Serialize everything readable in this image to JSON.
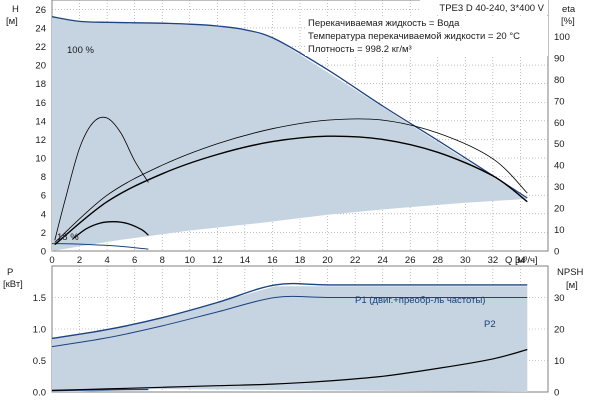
{
  "chart_data": [
    {
      "id": "head_eff",
      "type": "line",
      "title": "TPE3 D 40-240, 3*400 V",
      "info": [
        "Перекачиваемая жидкость = Вода",
        "Температура перекачиваемой жидкости = 20 °C",
        "Плотность = 998.2 кг/м³"
      ],
      "ylabel": "H",
      "yunit": "[м]",
      "y2label": "eta",
      "y2unit": "[%]",
      "xlabel": "Q",
      "xunit": "[м³/ч]",
      "xlim": [
        0,
        36
      ],
      "ylim": [
        0,
        27
      ],
      "y2lim": [
        0,
        117
      ],
      "xticks": [
        "0",
        "2",
        "4",
        "6",
        "8",
        "10",
        "12",
        "14",
        "16",
        "18",
        "20",
        "22",
        "24",
        "26",
        "28",
        "30",
        "32",
        "34"
      ],
      "yticks": [
        "0",
        "2",
        "4",
        "6",
        "8",
        "10",
        "12",
        "14",
        "16",
        "18",
        "20",
        "22",
        "24",
        "26"
      ],
      "y2ticks": [
        "0",
        "10",
        "20",
        "30",
        "40",
        "50",
        "60",
        "70",
        "80",
        "90",
        "100"
      ],
      "speed_labels": {
        "max": "100 %",
        "min": "18 %"
      },
      "operating_range": [
        [
          0,
          25.2
        ],
        [
          1,
          24.9
        ],
        [
          3,
          24.6
        ],
        [
          6,
          24.55
        ],
        [
          10,
          24.4
        ],
        [
          14,
          23.9
        ],
        [
          16.2,
          22.8
        ],
        [
          34.5,
          5.6
        ],
        [
          30,
          5.2
        ],
        [
          25,
          4.6
        ],
        [
          20,
          3.9
        ],
        [
          15,
          3.0
        ],
        [
          10,
          2.2
        ],
        [
          5,
          1.2
        ],
        [
          2,
          0.5
        ],
        [
          0,
          0
        ]
      ],
      "series": [
        {
          "role": "H, 100 %",
          "color": "#1c4382",
          "x": [
            0,
            2,
            4,
            6,
            8,
            10,
            12,
            14,
            16.2,
            20,
            24,
            28,
            32,
            34.5
          ],
          "y": [
            25.2,
            24.7,
            24.6,
            24.55,
            24.5,
            24.4,
            24.2,
            23.8,
            22.8,
            19.5,
            15.6,
            11.9,
            8.1,
            5.7
          ]
        },
        {
          "role": "H, 18 %",
          "color": "#1c4382",
          "x": [
            0,
            1,
            2,
            3,
            4,
            5,
            6,
            7
          ],
          "y": [
            0.8,
            0.78,
            0.74,
            0.68,
            0.6,
            0.5,
            0.36,
            0.2
          ]
        },
        {
          "role": "H, reduced speed",
          "color": "#000000",
          "x": [
            1.5,
            2.5,
            3.5,
            4.5,
            5.5,
            6.5,
            7
          ],
          "y": [
            1.3,
            2.4,
            3.0,
            3.15,
            2.95,
            2.3,
            1.7
          ]
        },
        {
          "role": "eta, 100 %",
          "axis": "y2",
          "color": "#000000",
          "x": [
            0.2,
            4,
            8,
            12,
            16,
            20,
            24,
            28,
            32,
            34.5
          ],
          "y": [
            3,
            23,
            36,
            45,
            51,
            53.5,
            52,
            46,
            35,
            23
          ]
        },
        {
          "role": "eta, 18 %",
          "axis": "y2",
          "color": "#000000",
          "x": [
            0.2,
            1,
            2,
            3,
            4,
            5,
            6,
            7
          ],
          "y": [
            5,
            25,
            48,
            60,
            62,
            55,
            42,
            32
          ]
        },
        {
          "role": "eta, reference",
          "axis": "y2",
          "color": "#000000",
          "x": [
            0.2,
            4,
            8,
            12,
            16,
            20,
            24,
            28,
            32,
            34.5
          ],
          "y": [
            4,
            26,
            40,
            50,
            57,
            61,
            61,
            55,
            43,
            27
          ]
        }
      ]
    },
    {
      "id": "power_npsh",
      "type": "line",
      "ylabel": "P",
      "yunit": "[кВт]",
      "y2label": "NPSH",
      "y2unit": "[м]",
      "xlim": [
        0,
        36
      ],
      "ylim": [
        0,
        2.0
      ],
      "y2lim": [
        0,
        40
      ],
      "yticks": [
        "0.0",
        "0.5",
        "1.0",
        "1.5"
      ],
      "y2ticks": [
        "0",
        "10",
        "20",
        "30"
      ],
      "operating_range": [
        [
          0,
          0.85
        ],
        [
          4,
          0.99
        ],
        [
          8,
          1.18
        ],
        [
          12,
          1.42
        ],
        [
          16.2,
          1.68
        ],
        [
          34.5,
          1.68
        ],
        [
          34.5,
          0
        ],
        [
          7,
          0.05
        ],
        [
          2,
          0
        ],
        [
          0,
          0
        ]
      ],
      "series": [
        {
          "name": "P1 (двиг.+преобр-ль частоты)",
          "color": "#1c4382",
          "x": [
            0,
            4,
            8,
            12,
            16.2,
            20,
            25,
            30,
            34.5
          ],
          "y": [
            0.85,
            0.99,
            1.18,
            1.42,
            1.7,
            1.7,
            1.7,
            1.7,
            1.7
          ]
        },
        {
          "name": "P2",
          "color": "#1c4382",
          "x": [
            0,
            4,
            8,
            12,
            16.2,
            20,
            25,
            30,
            34.5
          ],
          "y": [
            0.72,
            0.86,
            1.05,
            1.27,
            1.5,
            1.5,
            1.5,
            1.5,
            1.5
          ]
        },
        {
          "role": "P, 18 %",
          "color": "#1c4382",
          "x": [
            0,
            2,
            4,
            7
          ],
          "y": [
            0.02,
            0.03,
            0.035,
            0.04
          ]
        },
        {
          "role": "NPSH",
          "axis": "y2",
          "color": "#000000",
          "x": [
            0,
            4,
            8,
            12,
            16,
            20,
            24,
            28,
            32,
            34.5
          ],
          "y": [
            0.5,
            1,
            1.5,
            2,
            2.5,
            3.5,
            5,
            7.5,
            10.5,
            13.5
          ]
        }
      ]
    }
  ]
}
